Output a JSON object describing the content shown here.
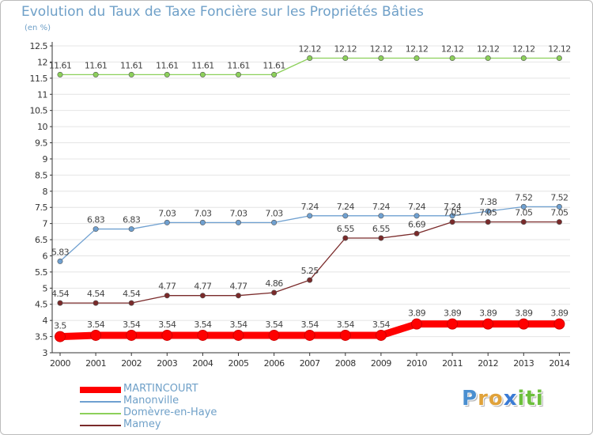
{
  "title": "Evolution du Taux de Taxe Foncière sur les Propriétés Bâties",
  "unit": "(en %)",
  "logo": {
    "letters": [
      "P",
      "r",
      "o",
      "x",
      "i",
      "t",
      "i"
    ],
    "colors": [
      "#4a8fd0",
      "#e0a23a",
      "#e0a23a",
      "#3a7bd5",
      "#6cbf3c",
      "#6cbf3c",
      "#6cbf3c"
    ]
  },
  "chart_data": {
    "type": "line",
    "title": "Evolution du Taux de Taxe Foncière sur les Propriétés Bâties",
    "ylabel": "(en %)",
    "xlabel": "",
    "categories": [
      "2000",
      "2001",
      "2002",
      "2003",
      "2004",
      "2005",
      "2006",
      "2007",
      "2008",
      "2009",
      "2010",
      "2011",
      "2012",
      "2013",
      "2014"
    ],
    "ylim": [
      3,
      12.5
    ],
    "yticks": [
      "3",
      "3.5",
      "4",
      "4.5",
      "5",
      "5.5",
      "6",
      "6.5",
      "7",
      "7.5",
      "8",
      "8.5",
      "9",
      "9.5",
      "10",
      "10.5",
      "11",
      "11.5",
      "12",
      "12.5"
    ],
    "series": [
      {
        "name": "MARTINCOURT",
        "color": "#ff0000",
        "values": [
          3.5,
          3.54,
          3.54,
          3.54,
          3.54,
          3.54,
          3.54,
          3.54,
          3.54,
          3.54,
          3.89,
          3.89,
          3.89,
          3.89,
          3.89
        ],
        "labels": [
          "3.5",
          "3.54",
          "3.54",
          "3.54",
          "3.54",
          "3.54",
          "3.54",
          "3.54",
          "3.54",
          "3.54",
          "3.89",
          "3.89",
          "3.89",
          "3.89",
          "3.89"
        ]
      },
      {
        "name": "Manonville",
        "color": "#6fa0d0",
        "values": [
          5.83,
          6.83,
          6.83,
          7.03,
          7.03,
          7.03,
          7.03,
          7.24,
          7.24,
          7.24,
          7.24,
          7.24,
          7.38,
          7.52,
          7.52
        ],
        "labels": [
          "5.83",
          "6.83",
          "6.83",
          "7.03",
          "7.03",
          "7.03",
          "7.03",
          "7.24",
          "7.24",
          "7.24",
          "7.24",
          "7.24",
          "7.38",
          "7.52",
          "7.52"
        ]
      },
      {
        "name": "Domèvre-en-Haye",
        "color": "#8cd05a",
        "values": [
          11.61,
          11.61,
          11.61,
          11.61,
          11.61,
          11.61,
          11.61,
          12.12,
          12.12,
          12.12,
          12.12,
          12.12,
          12.12,
          12.12,
          12.12
        ],
        "labels": [
          "11.61",
          "11.61",
          "11.61",
          "11.61",
          "11.61",
          "11.61",
          "11.61",
          "12.12",
          "12.12",
          "12.12",
          "12.12",
          "12.12",
          "12.12",
          "12.12",
          "12.12"
        ]
      },
      {
        "name": "Mamey",
        "color": "#7a2a2a",
        "values": [
          4.54,
          4.54,
          4.54,
          4.77,
          4.77,
          4.77,
          4.86,
          5.25,
          6.55,
          6.55,
          6.69,
          7.05,
          7.05,
          7.05,
          7.05
        ],
        "labels": [
          "4.54",
          "4.54",
          "4.54",
          "4.77",
          "4.77",
          "4.77",
          "4.86",
          "5.25",
          "6.55",
          "6.55",
          "6.69",
          "7.05",
          "7.05",
          "7.05",
          "7.05"
        ]
      }
    ]
  }
}
